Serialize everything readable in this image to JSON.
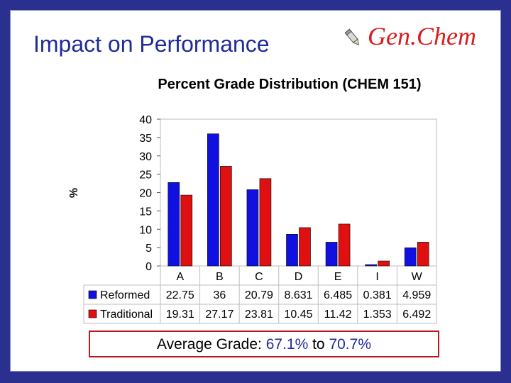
{
  "slide": {
    "title": "Impact on Performance",
    "logo_text": "Gen.Chem",
    "footer": {
      "label": "Average Grade:",
      "reformed_value": "67.1%",
      "connector": "to",
      "traditional_value": "70.7%"
    }
  },
  "colors": {
    "reformed": "#1010e0",
    "traditional": "#e01010"
  },
  "chart_data": {
    "type": "bar",
    "title": "Percent Grade Distribution (CHEM 151)",
    "ylabel": "%",
    "xlabel": "",
    "ylim": [
      0,
      40
    ],
    "yticks": [
      0,
      5,
      10,
      15,
      20,
      25,
      30,
      35,
      40
    ],
    "categories": [
      "A",
      "B",
      "C",
      "D",
      "E",
      "I",
      "W"
    ],
    "series": [
      {
        "name": "Reformed",
        "values": [
          22.75,
          36,
          20.79,
          8.631,
          6.485,
          0.381,
          4.959
        ],
        "labels": [
          "22.75",
          "36",
          "20.79",
          "8.631",
          "6.485",
          "0.381",
          "4.959"
        ]
      },
      {
        "name": "Traditional",
        "values": [
          19.31,
          27.17,
          23.81,
          10.45,
          11.42,
          1.353,
          6.492
        ],
        "labels": [
          "19.31",
          "27.17",
          "23.81",
          "10.45",
          "11.42",
          "1.353",
          "6.492"
        ]
      }
    ],
    "grid": false,
    "legend": "data-table"
  }
}
